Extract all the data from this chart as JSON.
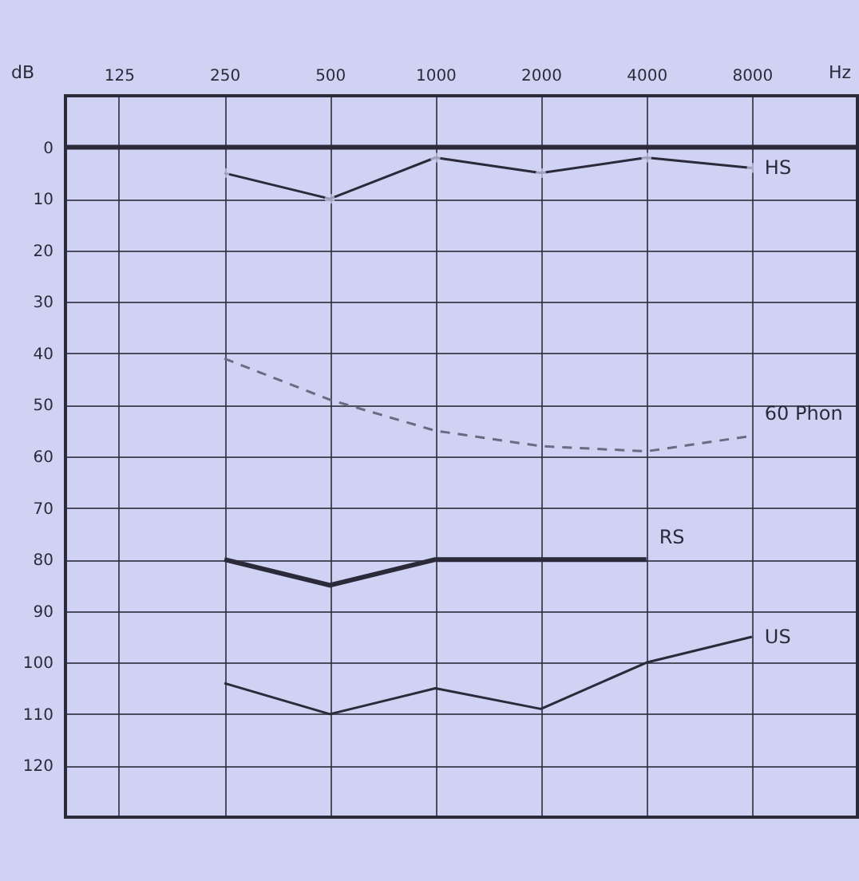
{
  "chart_data": {
    "type": "line",
    "xlabel": "Hz",
    "ylabel": "dB",
    "log": "x",
    "xlim": [
      88,
      16000
    ],
    "xticks": [
      125,
      250,
      500,
      1000,
      2000,
      4000,
      8000
    ],
    "ylim": [
      130,
      -10
    ],
    "yticks": [
      0,
      10,
      20,
      30,
      40,
      50,
      60,
      70,
      80,
      90,
      100,
      110,
      120
    ],
    "grid": true,
    "ref_lines": [
      {
        "axis": "y",
        "value": 0,
        "color": "#2a2a3a"
      }
    ],
    "series": [
      {
        "name": "HS",
        "color": "#2a2a3a",
        "marker": "circle",
        "x": [
          250,
          500,
          1000,
          2000,
          4000,
          8000
        ],
        "values": [
          5,
          10,
          2,
          5,
          2,
          4
        ]
      },
      {
        "name": "60 Phon",
        "color": "#6a6a80",
        "line_style": "dashed",
        "x": [
          250,
          500,
          1000,
          2000,
          4000,
          8000
        ],
        "values": [
          41,
          49,
          55,
          58,
          59,
          56
        ]
      },
      {
        "name": "RS",
        "color": "#2a2a3a",
        "x": [
          250,
          500,
          1000,
          2000,
          4000
        ],
        "values": [
          80,
          85,
          80,
          80,
          80
        ]
      },
      {
        "name": "US",
        "color": "#2a2a3a",
        "x": [
          250,
          500,
          1000,
          2000,
          4000,
          8000
        ],
        "values": [
          104,
          110,
          105,
          109,
          100,
          95
        ]
      }
    ]
  }
}
